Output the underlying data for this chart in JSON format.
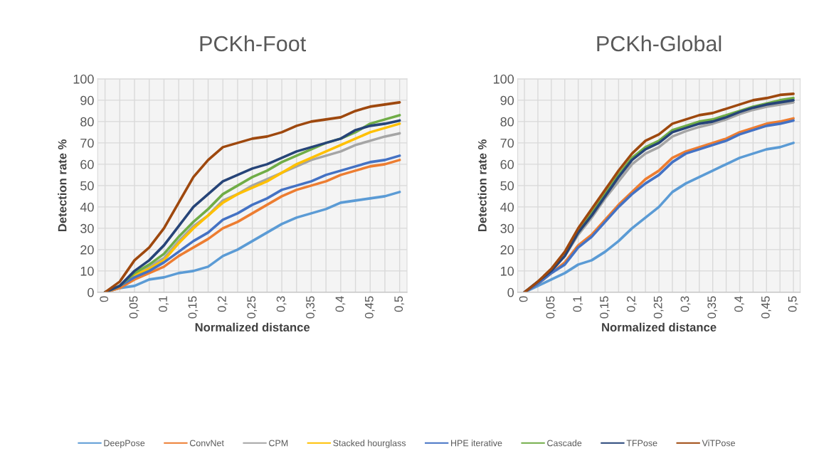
{
  "chart_data": [
    {
      "type": "line",
      "title": "PCKh-Foot",
      "xlabel": "Normalized distance",
      "ylabel": "Detection rate %",
      "categories": [
        "0",
        null,
        "0,05",
        null,
        "0,1",
        null,
        "0,15",
        null,
        "0,2",
        null,
        "0,25",
        null,
        "0,3",
        null,
        "0,35",
        null,
        "0,4",
        null,
        "0,45",
        null,
        "0,5"
      ],
      "ylim": [
        0,
        100
      ],
      "yticks": [
        0,
        10,
        20,
        30,
        40,
        50,
        60,
        70,
        80,
        90,
        100
      ],
      "grid": true,
      "legend": "bottom",
      "series": [
        {
          "name": "DeepPose",
          "color": "#5b9bd5",
          "values": [
            0,
            2,
            3,
            6,
            7,
            9,
            10,
            12,
            17,
            20,
            24,
            28,
            32,
            35,
            37,
            39,
            42,
            43,
            44,
            45,
            47
          ]
        },
        {
          "name": "ConvNet",
          "color": "#ed7d31",
          "values": [
            0,
            2,
            6,
            9,
            12,
            17,
            21,
            25,
            30,
            33,
            37,
            41,
            45,
            48,
            50,
            52,
            55,
            57,
            59,
            60,
            62
          ]
        },
        {
          "name": "CPM",
          "color": "#a5a5a5",
          "values": [
            0,
            3,
            8,
            12,
            16,
            24,
            31,
            36,
            43,
            46,
            50,
            53,
            56,
            59,
            62,
            64,
            66,
            69,
            71,
            73,
            74.5
          ]
        },
        {
          "name": "Stacked hourglass",
          "color": "#ffc000",
          "values": [
            0,
            3,
            8,
            11,
            15,
            23,
            30,
            36,
            42,
            46,
            49,
            52,
            56,
            60,
            63,
            66,
            69,
            72,
            75,
            77,
            79
          ]
        },
        {
          "name": "HPE iterative",
          "color": "#4472c4",
          "values": [
            0,
            3,
            7,
            10,
            14,
            19,
            24,
            28,
            34,
            37,
            41,
            44,
            48,
            50,
            52,
            55,
            57,
            59,
            61,
            62,
            64
          ]
        },
        {
          "name": "Cascade",
          "color": "#70ad47",
          "values": [
            0,
            3,
            9,
            13,
            18,
            26,
            33,
            39,
            46,
            50,
            54,
            57,
            61,
            64,
            67,
            70,
            72,
            75,
            79,
            81,
            83
          ]
        },
        {
          "name": "TFPose",
          "color": "#264478",
          "values": [
            0,
            3,
            10,
            15,
            22,
            31,
            40,
            46,
            52,
            55,
            58,
            60,
            63,
            66,
            68,
            70,
            72,
            76,
            78,
            79,
            80.5
          ]
        },
        {
          "name": "ViTPose",
          "color": "#9e480e",
          "values": [
            0,
            5,
            15,
            21,
            30,
            42,
            54,
            62,
            68,
            70,
            72,
            73,
            75,
            78,
            80,
            81,
            82,
            85,
            87,
            88,
            89
          ]
        }
      ]
    },
    {
      "type": "line",
      "title": "PCKh-Global",
      "xlabel": "Normalized distance",
      "ylabel": "Detection rate %",
      "categories": [
        "0",
        null,
        "0,05",
        null,
        "0,1",
        null,
        "0,15",
        null,
        "0,2",
        null,
        "0,25",
        null,
        "0,3",
        null,
        "0,35",
        null,
        "0,4",
        null,
        "0,45",
        null,
        "0,5"
      ],
      "ylim": [
        0,
        100
      ],
      "yticks": [
        0,
        10,
        20,
        30,
        40,
        50,
        60,
        70,
        80,
        90,
        100
      ],
      "grid": true,
      "series": [
        {
          "color": "#5b9bd5",
          "values": [
            0,
            3,
            6,
            9,
            13,
            15,
            19,
            24,
            30,
            35,
            40,
            47,
            51,
            54,
            57,
            60,
            63,
            65,
            67,
            68,
            70
          ]
        },
        {
          "color": "#ed7d31",
          "values": [
            0,
            4,
            9,
            14,
            22,
            27,
            34,
            41,
            47,
            53,
            57,
            63,
            66,
            68,
            70,
            72,
            75,
            77,
            79,
            80,
            81.5
          ]
        },
        {
          "color": "#a5a5a5",
          "values": [
            0,
            5,
            10,
            17,
            27,
            35,
            44,
            52,
            60,
            65,
            68,
            73,
            75.5,
            77.5,
            79,
            81,
            83.5,
            85.5,
            87,
            88,
            89
          ]
        },
        {
          "color": "#4472c4",
          "values": [
            0,
            4,
            9,
            13,
            21,
            26,
            33,
            40,
            46,
            51,
            55,
            61,
            65,
            67,
            69,
            71,
            74,
            76,
            78,
            79,
            80.5
          ]
        },
        {
          "color": "#70ad47",
          "values": [
            null,
            null,
            null,
            18,
            28,
            37,
            46,
            55,
            63,
            68,
            71,
            76,
            78,
            80,
            81,
            83,
            85,
            87,
            88.5,
            90,
            91
          ]
        },
        {
          "color": "#264478",
          "values": [
            0,
            5,
            10,
            17,
            28,
            36,
            45,
            54,
            62,
            67,
            70,
            75,
            77,
            79,
            80,
            82,
            84.5,
            86.5,
            88,
            89,
            90
          ]
        },
        {
          "color": "#9e480e",
          "values": [
            0,
            5,
            11,
            19,
            30,
            39,
            48,
            57,
            65,
            71,
            74,
            79,
            81,
            83,
            84,
            86,
            88,
            90,
            91,
            92.5,
            93
          ]
        }
      ]
    }
  ]
}
